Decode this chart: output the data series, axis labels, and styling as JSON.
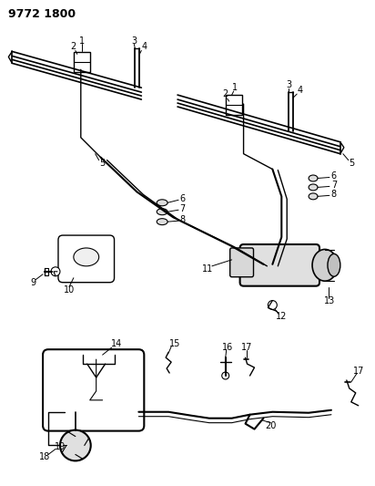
{
  "title": "9772 1800",
  "bg_color": "#ffffff",
  "line_color": "#000000",
  "fig_width": 4.12,
  "fig_height": 5.33,
  "dpi": 100
}
